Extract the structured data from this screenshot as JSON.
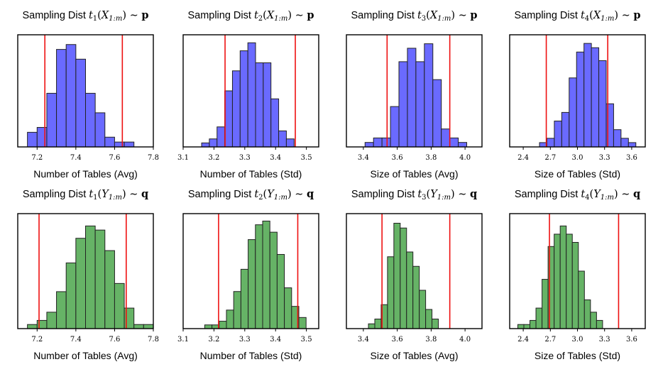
{
  "colors": {
    "p": "#6a6aff",
    "q": "#66b366",
    "edge": "#222222",
    "vline": "#ee1111"
  },
  "chart_data": [
    {
      "type": "bar",
      "row": "p",
      "title_prefix": "Sampling Dist",
      "stat": "t",
      "idx": "1",
      "var": "X",
      "sub": "1:m",
      "dist": "p",
      "title": "Sampling Dist t1(X1:m) ~ p",
      "xlabel": "Number of Tables (Avg)",
      "xlim": [
        7.1,
        7.8
      ],
      "xticks": [
        "7.2",
        "7.4",
        "7.6",
        "7.8"
      ],
      "bin_start": 7.15,
      "bin_width": 0.05,
      "counts": [
        3,
        4,
        11,
        20,
        21,
        18,
        11,
        7,
        2,
        1,
        1
      ],
      "ymax": 23,
      "vlines": [
        7.24,
        7.64
      ]
    },
    {
      "type": "bar",
      "row": "p",
      "title_prefix": "Sampling Dist",
      "stat": "t",
      "idx": "2",
      "var": "X",
      "sub": "1:m",
      "dist": "p",
      "title": "Sampling Dist t2(X1:m) ~ p",
      "xlabel": "Number of Tables (Std)",
      "xlim": [
        3.1,
        3.54
      ],
      "xticks": [
        "3.1",
        "3.2",
        "3.3",
        "3.4",
        "3.5"
      ],
      "bin_start": 3.16,
      "bin_width": 0.025,
      "counts": [
        1,
        2,
        5,
        14,
        19,
        24,
        26,
        21,
        21,
        12,
        4,
        2
      ],
      "ymax": 28,
      "vlines": [
        3.236,
        3.464
      ]
    },
    {
      "type": "bar",
      "row": "p",
      "title_prefix": "Sampling Dist",
      "stat": "t",
      "idx": "3",
      "var": "X",
      "sub": "1:m",
      "dist": "p",
      "title": "Sampling Dist t3(X1:m) ~ p",
      "xlabel": "Size of Tables (Avg)",
      "xlim": [
        3.3,
        4.1
      ],
      "xticks": [
        "3.4",
        "3.6",
        "3.8",
        "4.0"
      ],
      "bin_start": 3.41,
      "bin_width": 0.05,
      "counts": [
        1,
        2,
        2,
        9,
        19,
        22,
        19,
        23,
        15,
        4,
        2,
        1
      ],
      "ymax": 25,
      "vlines": [
        3.54,
        3.91
      ]
    },
    {
      "type": "bar",
      "row": "p",
      "title_prefix": "Sampling Dist",
      "stat": "t",
      "idx": "4",
      "var": "X",
      "sub": "1:m",
      "dist": "p",
      "title": "Sampling Dist t4(X1:m) ~ p",
      "xlabel": "Size of Tables (Std)",
      "xlim": [
        2.25,
        3.75
      ],
      "xticks": [
        "2.4",
        "2.7",
        "3.0",
        "3.3",
        "3.6"
      ],
      "bin_start": 2.58,
      "bin_width": 0.082,
      "counts": [
        1,
        2,
        6,
        8,
        16,
        22,
        24,
        23,
        20,
        10,
        4,
        2,
        1
      ],
      "ymax": 26,
      "vlines": [
        2.655,
        3.335
      ]
    },
    {
      "type": "bar",
      "row": "q",
      "title_prefix": "Sampling Dist",
      "stat": "t",
      "idx": "1",
      "var": "Y",
      "sub": "1:m",
      "dist": "q",
      "title": "Sampling Dist t1(Y1:m) ~ q",
      "xlabel": "Number of Tables (Avg)",
      "xlim": [
        7.1,
        7.8
      ],
      "xticks": [
        "7.2",
        "7.4",
        "7.6",
        "7.8"
      ],
      "bin_start": 7.15,
      "bin_width": 0.05,
      "counts": [
        1,
        2,
        4,
        9,
        16,
        22,
        25,
        24,
        19,
        11,
        5,
        1,
        1
      ],
      "ymax": 28,
      "vlines": [
        7.21,
        7.66
      ]
    },
    {
      "type": "bar",
      "row": "q",
      "title_prefix": "Sampling Dist",
      "stat": "t",
      "idx": "2",
      "var": "Y",
      "sub": "1:m",
      "dist": "q",
      "title": "Sampling Dist t2(Y1:m) ~ q",
      "xlabel": "Number of Tables (Std)",
      "xlim": [
        3.1,
        3.54
      ],
      "xticks": [
        "3.1",
        "3.2",
        "3.3",
        "3.4",
        "3.5"
      ],
      "bin_start": 3.17,
      "bin_width": 0.0235,
      "counts": [
        1,
        1,
        2,
        5,
        10,
        16,
        24,
        28,
        29,
        26,
        20,
        11,
        6,
        3
      ],
      "ymax": 31,
      "vlines": [
        3.215,
        3.472
      ]
    },
    {
      "type": "bar",
      "row": "q",
      "title_prefix": "Sampling Dist",
      "stat": "t",
      "idx": "3",
      "var": "Y",
      "sub": "1:m",
      "dist": "q",
      "title": "Sampling Dist t3(Y1:m) ~ q",
      "xlabel": "Size of Tables (Avg)",
      "xlim": [
        3.3,
        4.1
      ],
      "xticks": [
        "3.4",
        "3.6",
        "3.8",
        "4.0"
      ],
      "bin_start": 3.43,
      "bin_width": 0.0375,
      "counts": [
        1,
        2,
        5,
        15,
        22,
        21,
        16,
        13,
        8,
        4,
        2
      ],
      "ymax": 24,
      "vlines": [
        3.51,
        3.91
      ]
    },
    {
      "type": "bar",
      "row": "q",
      "title_prefix": "Sampling Dist",
      "stat": "t",
      "idx": "4",
      "var": "Y",
      "sub": "1:m",
      "dist": "q",
      "title": "Sampling Dist t4(Y1:m) ~ q",
      "xlabel": "Size of Tables (Std)",
      "xlim": [
        2.25,
        3.75
      ],
      "xticks": [
        "2.4",
        "2.7",
        "3.0",
        "3.3",
        "3.6"
      ],
      "bin_start": 2.34,
      "bin_width": 0.067,
      "counts": [
        1,
        1,
        2,
        5,
        12,
        20,
        23,
        25,
        23,
        21,
        14,
        7,
        4,
        2
      ],
      "ymax": 28,
      "vlines": [
        2.69,
        3.455
      ]
    }
  ]
}
